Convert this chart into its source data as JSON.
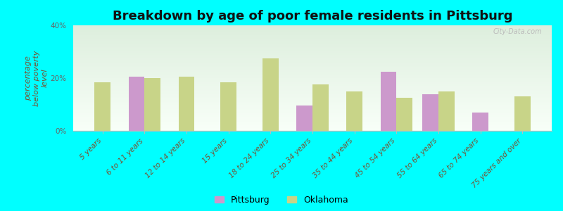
{
  "title": "Breakdown by age of poor female residents in Pittsburg",
  "ylabel": "percentage\nbelow poverty\nlevel",
  "categories": [
    "5 years",
    "6 to 11 years",
    "12 to 14 years",
    "15 years",
    "18 to 24 years",
    "25 to 34 years",
    "35 to 44 years",
    "45 to 54 years",
    "55 to 64 years",
    "65 to 74 years",
    "75 years and over"
  ],
  "pittsburg": [
    null,
    20.5,
    null,
    null,
    null,
    9.5,
    null,
    22.5,
    14.0,
    7.0,
    null
  ],
  "oklahoma": [
    18.5,
    20.0,
    20.5,
    18.5,
    27.5,
    17.5,
    15.0,
    12.5,
    15.0,
    null,
    13.0
  ],
  "pittsburg_color": "#cc99cc",
  "oklahoma_color": "#c8d488",
  "background_color": "#00ffff",
  "plot_bg_top": "#ddeedd",
  "plot_bg_bottom": "#f8fff8",
  "ylim": [
    0,
    40
  ],
  "yticks": [
    0,
    20,
    40
  ],
  "ytick_labels": [
    "0%",
    "20%",
    "40%"
  ],
  "bar_width": 0.38,
  "title_fontsize": 13,
  "axis_label_fontsize": 8,
  "tick_fontsize": 7.5,
  "legend_fontsize": 9,
  "watermark": "City-Data.com"
}
